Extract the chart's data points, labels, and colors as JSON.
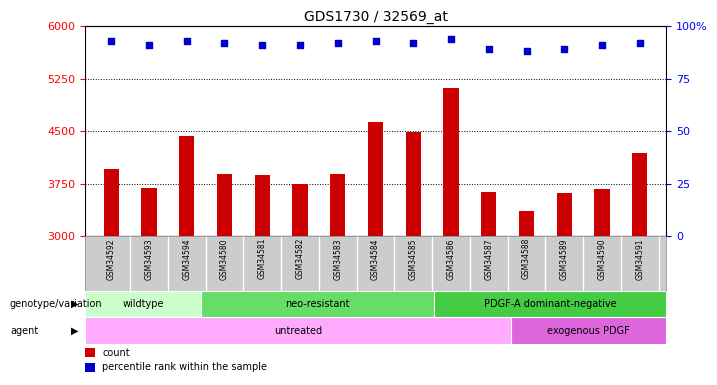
{
  "title": "GDS1730 / 32569_at",
  "samples": [
    "GSM34592",
    "GSM34593",
    "GSM34594",
    "GSM34580",
    "GSM34581",
    "GSM34582",
    "GSM34583",
    "GSM34584",
    "GSM34585",
    "GSM34586",
    "GSM34587",
    "GSM34588",
    "GSM34589",
    "GSM34590",
    "GSM34591"
  ],
  "counts": [
    3960,
    3690,
    4430,
    3890,
    3870,
    3740,
    3890,
    4630,
    4490,
    5120,
    3630,
    3360,
    3620,
    3680,
    4190
  ],
  "percentiles": [
    93,
    91,
    93,
    92,
    91,
    91,
    92,
    93,
    92,
    94,
    89,
    88,
    89,
    91,
    92
  ],
  "ylim_left": [
    3000,
    6000
  ],
  "ylim_right": [
    0,
    100
  ],
  "yticks_left": [
    3000,
    3750,
    4500,
    5250,
    6000
  ],
  "yticks_right": [
    0,
    25,
    50,
    75,
    100
  ],
  "bar_color": "#cc0000",
  "dot_color": "#0000cc",
  "bar_width": 0.4,
  "sample_bg_color": "#cccccc",
  "groups": {
    "genotype": [
      {
        "label": "wildtype",
        "start": 0,
        "end": 3,
        "color": "#ccffcc"
      },
      {
        "label": "neo-resistant",
        "start": 3,
        "end": 9,
        "color": "#66dd66"
      },
      {
        "label": "PDGF-A dominant-negative",
        "start": 9,
        "end": 15,
        "color": "#44cc44"
      }
    ],
    "agent": [
      {
        "label": "untreated",
        "start": 0,
        "end": 11,
        "color": "#ffaaff"
      },
      {
        "label": "exogenous PDGF",
        "start": 11,
        "end": 15,
        "color": "#dd66dd"
      }
    ]
  },
  "legend": [
    {
      "label": "count",
      "color": "#cc0000"
    },
    {
      "label": "percentile rank within the sample",
      "color": "#0000cc"
    }
  ]
}
